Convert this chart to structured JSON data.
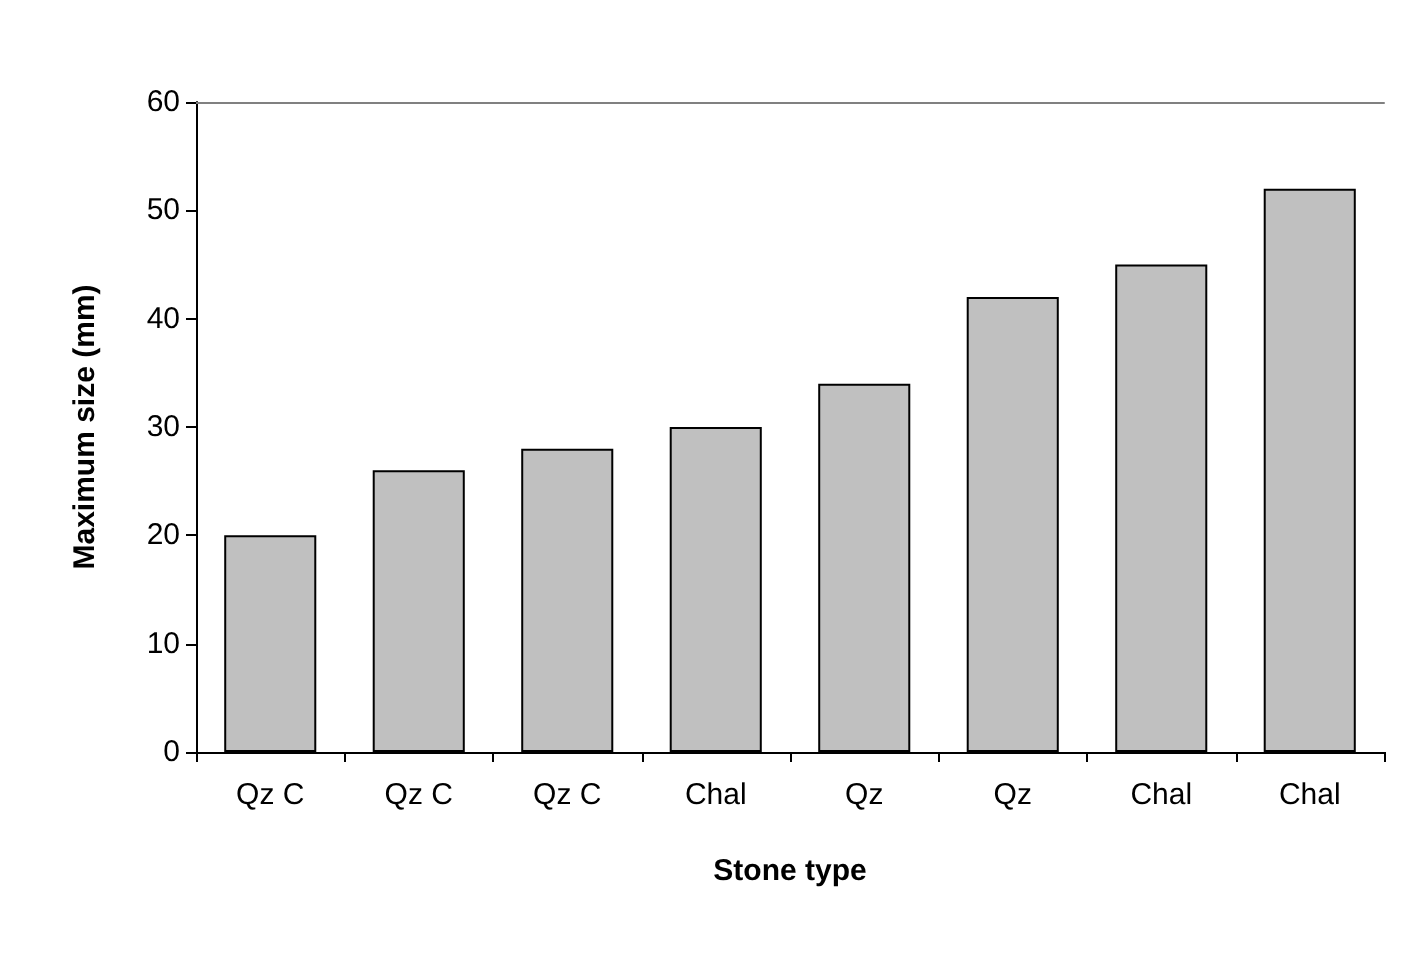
{
  "chart_data": {
    "type": "bar",
    "xlabel": "Stone type",
    "ylabel": "Maximum size (mm)",
    "categories": [
      "Qz C",
      "Qz C",
      "Qz C",
      "Chal",
      "Qz",
      "Qz",
      "Chal",
      "Chal"
    ],
    "values": [
      20,
      26,
      28,
      30,
      34,
      42,
      45,
      52
    ],
    "color": "#c0c0c0",
    "ylim": [
      0,
      60
    ],
    "yticks": [
      0,
      10,
      20,
      30,
      40,
      50,
      60
    ],
    "grid": false
  }
}
